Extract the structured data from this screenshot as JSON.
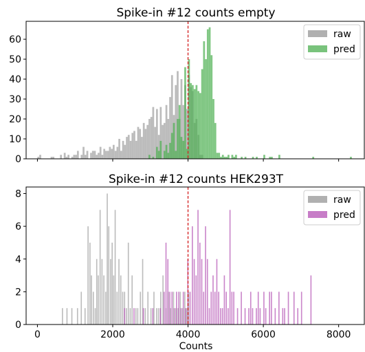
{
  "colors": {
    "raw": "#b0b0b0",
    "pred_top": "#4caf50",
    "pred_bottom": "#b452b4",
    "threshold": "#d62728"
  },
  "chart_data": [
    {
      "type": "bar",
      "title": "Spike-in #12 counts empty",
      "xlabel": "",
      "ylabel": "",
      "xlim": [
        -300,
        8700
      ],
      "ylim": [
        0,
        69
      ],
      "xticks": [
        0,
        2000,
        4000,
        6000,
        8000
      ],
      "yticks": [
        0,
        10,
        20,
        30,
        40,
        50,
        60
      ],
      "legend": {
        "position": "top-right",
        "entries": [
          "raw",
          "pred"
        ]
      },
      "threshold": 4000,
      "bin_width": 50,
      "series": [
        {
          "name": "raw",
          "x": [
            0,
            50,
            350,
            400,
            600,
            700,
            750,
            800,
            900,
            950,
            1000,
            1050,
            1150,
            1200,
            1250,
            1300,
            1400,
            1450,
            1500,
            1550,
            1600,
            1650,
            1700,
            1750,
            1800,
            1850,
            1900,
            1950,
            2000,
            2050,
            2100,
            2150,
            2200,
            2250,
            2300,
            2350,
            2400,
            2450,
            2500,
            2550,
            2600,
            2650,
            2700,
            2750,
            2800,
            2850,
            2900,
            2950,
            3000,
            3050,
            3100,
            3150,
            3200,
            3250,
            3300,
            3350,
            3400,
            3450,
            3500,
            3550,
            3600,
            3650,
            3700,
            3750,
            3800,
            3850,
            3900,
            3950,
            4000,
            4050,
            4100,
            4150,
            4200,
            4250,
            4300,
            4350
          ],
          "values": [
            1,
            2,
            1,
            1,
            2,
            3,
            1,
            2,
            1,
            2,
            2,
            4,
            2,
            6,
            2,
            4,
            3,
            4,
            4,
            2,
            3,
            6,
            2,
            5,
            4,
            4,
            6,
            5,
            7,
            4,
            6,
            10,
            4,
            9,
            7,
            11,
            12,
            9,
            13,
            14,
            9,
            16,
            15,
            11,
            18,
            15,
            17,
            20,
            21,
            26,
            16,
            25,
            12,
            26,
            17,
            18,
            27,
            20,
            31,
            42,
            22,
            37,
            44,
            20,
            40,
            27,
            37,
            25,
            42,
            36,
            34,
            18,
            20,
            12,
            2,
            2
          ]
        },
        {
          "name": "pred",
          "x": [
            2950,
            3050,
            3150,
            3200,
            3250,
            3350,
            3400,
            3450,
            3500,
            3550,
            3600,
            3650,
            3700,
            3750,
            3800,
            3850,
            3900,
            3950,
            4000,
            4050,
            4100,
            4150,
            4200,
            4250,
            4300,
            4350,
            4400,
            4450,
            4500,
            4550,
            4600,
            4650,
            4700,
            4750,
            4800,
            4850,
            4900,
            4950,
            5000,
            5050,
            5150,
            5200,
            5250,
            5400,
            5500,
            5700,
            5800,
            6000,
            6150,
            6200,
            6400,
            7300,
            8300
          ],
          "values": [
            2,
            1,
            6,
            4,
            9,
            4,
            7,
            3,
            8,
            13,
            18,
            4,
            20,
            27,
            11,
            9,
            46,
            5,
            50,
            38,
            37,
            35,
            37,
            34,
            33,
            45,
            59,
            50,
            65,
            66,
            52,
            30,
            18,
            3,
            3,
            1,
            2,
            1,
            1,
            2,
            2,
            1,
            2,
            1,
            1,
            1,
            1,
            2,
            1,
            1,
            2,
            1,
            1
          ]
        }
      ]
    },
    {
      "type": "bar",
      "title": "Spike-in #12 counts HEK293T",
      "xlabel": "Counts",
      "ylabel": "",
      "xlim": [
        -300,
        8700
      ],
      "ylim": [
        0,
        8.4
      ],
      "xticks": [
        0,
        2000,
        4000,
        6000,
        8000
      ],
      "yticks": [
        0,
        2,
        4,
        6,
        8
      ],
      "legend": {
        "position": "top-right",
        "entries": [
          "raw",
          "pred"
        ]
      },
      "threshold": 4000,
      "bin_width": 30,
      "series": [
        {
          "name": "raw",
          "x": [
            650,
            770,
            900,
            1050,
            1150,
            1250,
            1330,
            1380,
            1420,
            1470,
            1520,
            1560,
            1600,
            1650,
            1700,
            1750,
            1800,
            1840,
            1880,
            1930,
            1970,
            2010,
            2050,
            2100,
            2150,
            2200,
            2250,
            2300,
            2350,
            2400,
            2450,
            2500,
            2600,
            2650,
            2720,
            2780,
            2850,
            2920,
            3000,
            3080,
            3150,
            3200,
            3260,
            3320,
            3400,
            3460,
            3520,
            3600,
            3660,
            3720,
            3780,
            3840,
            3900,
            3950,
            4000
          ],
          "values": [
            1,
            1,
            1,
            1,
            2,
            1,
            6,
            5,
            3,
            2,
            1,
            4,
            3,
            7,
            4,
            3,
            2,
            8,
            6,
            4,
            5,
            3,
            7,
            2,
            4,
            3,
            2,
            2,
            1,
            5,
            1,
            3,
            1,
            1,
            2,
            4,
            1,
            2,
            1,
            2,
            1,
            1,
            2,
            3,
            1,
            2,
            1,
            2,
            1,
            1,
            2,
            1,
            2,
            1,
            2
          ]
        },
        {
          "name": "pred",
          "x": [
            2300,
            2550,
            2800,
            3050,
            3250,
            3350,
            3400,
            3450,
            3500,
            3560,
            3620,
            3680,
            3740,
            3800,
            3860,
            3920,
            3980,
            4040,
            4100,
            4150,
            4200,
            4250,
            4300,
            4350,
            4400,
            4450,
            4500,
            4550,
            4600,
            4650,
            4700,
            4750,
            4800,
            4850,
            4900,
            4950,
            5000,
            5050,
            5100,
            5150,
            5200,
            5300,
            5400,
            5500,
            5600,
            5650,
            5700,
            5800,
            5850,
            5900,
            6000,
            6050,
            6150,
            6200,
            6300,
            6400,
            6500,
            6550,
            6650,
            6800,
            6900,
            7000,
            7250
          ],
          "values": [
            1,
            1,
            1,
            1,
            1,
            2,
            5,
            4,
            2,
            2,
            1,
            2,
            2,
            1,
            2,
            1,
            4,
            2,
            6,
            4,
            3,
            7,
            5,
            4,
            2,
            6,
            4,
            1,
            2,
            3,
            2,
            4,
            2,
            1,
            1,
            3,
            2,
            1,
            7,
            2,
            2,
            1,
            2,
            1,
            1,
            2,
            1,
            1,
            2,
            1,
            2,
            1,
            2,
            2,
            1,
            2,
            1,
            1,
            2,
            2,
            1,
            2,
            3
          ]
        }
      ]
    }
  ]
}
